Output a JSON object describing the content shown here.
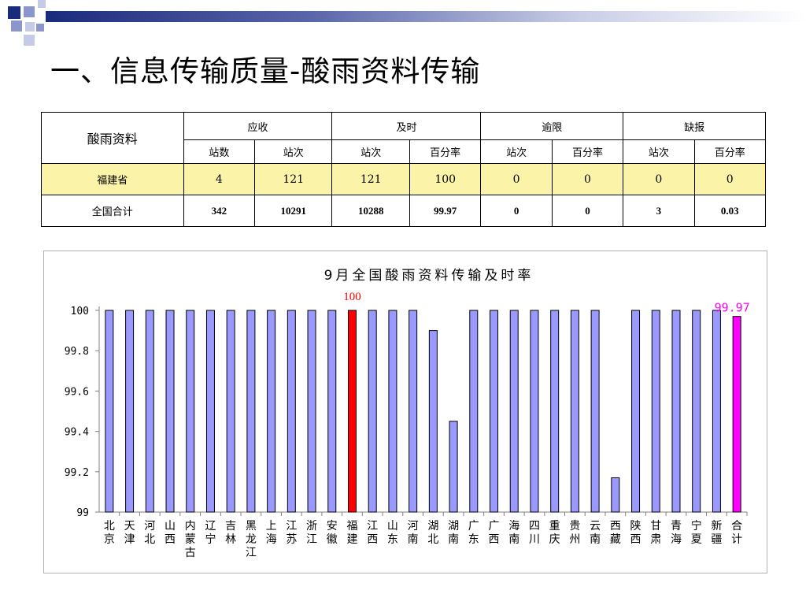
{
  "slide_title": "一、信息传输质量-酸雨资料传输",
  "table": {
    "corner_label": "酸雨资料",
    "groups": [
      "应收",
      "及时",
      "逾限",
      "缺报"
    ],
    "subheaders": [
      "站数",
      "站次",
      "站次",
      "百分率",
      "站次",
      "百分率",
      "站次",
      "百分率"
    ],
    "rows": [
      {
        "label": "福建省",
        "values": [
          "4",
          "121",
          "121",
          "100",
          "0",
          "0",
          "0",
          "0"
        ]
      },
      {
        "label": "全国合计",
        "values": [
          "342",
          "10291",
          "10288",
          "99.97",
          "0",
          "0",
          "3",
          "0.03"
        ]
      }
    ]
  },
  "chart_data": {
    "type": "bar",
    "title": "9月全国酸雨资料传输及时率",
    "ylim": [
      99,
      100
    ],
    "yticks": [
      "100",
      "99.8",
      "99.6",
      "99.4",
      "99.2",
      "99"
    ],
    "grid": false,
    "categories": [
      "北京",
      "天津",
      "河北",
      "山西",
      "内蒙古",
      "辽宁",
      "吉林",
      "黑龙江",
      "上海",
      "江苏",
      "浙江",
      "安徽",
      "福建",
      "江西",
      "山东",
      "河南",
      "湖北",
      "湖南",
      "广东",
      "广西",
      "海南",
      "四川",
      "重庆",
      "贵州",
      "云南",
      "西藏",
      "陕西",
      "甘肃",
      "青海",
      "宁夏",
      "新疆",
      "合计"
    ],
    "values": [
      100,
      100,
      100,
      100,
      100,
      100,
      100,
      100,
      100,
      100,
      100,
      100,
      100,
      100,
      100,
      100,
      99.9,
      99.45,
      100,
      100,
      100,
      100,
      100,
      100,
      100,
      99.17,
      100,
      100,
      100,
      100,
      100,
      99.97
    ],
    "annotations": [
      {
        "category": "福建",
        "text": "100",
        "color": "#ff0000"
      },
      {
        "category": "合计",
        "text": "99.97",
        "color": "#ff00ff"
      }
    ],
    "colors": {
      "default": "#9999ff",
      "highlight": "#ff0000",
      "total": "#ff00ff",
      "outline": "#000000"
    }
  }
}
